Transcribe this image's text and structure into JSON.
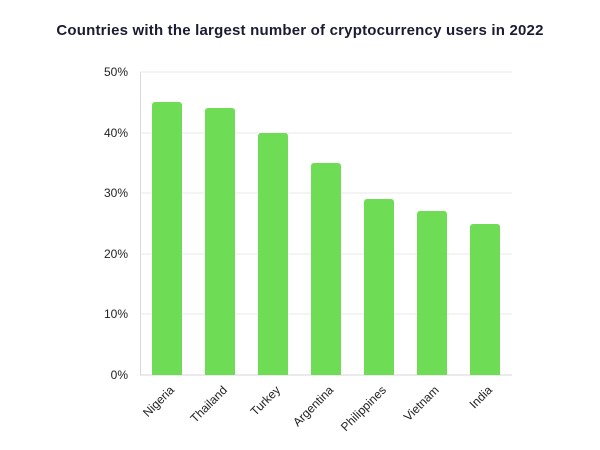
{
  "chart_data": {
    "type": "bar",
    "title": "Countries with the largest number of cryptocurrency users in 2022",
    "categories": [
      "Nigeria",
      "Thailand",
      "Turkey",
      "Argentina",
      "Philippines",
      "Vietnam",
      "India"
    ],
    "values": [
      45,
      44,
      40,
      35,
      29,
      27,
      25
    ],
    "xlabel": "",
    "ylabel": "",
    "ylim": [
      0,
      50
    ],
    "yticks": [
      0,
      10,
      20,
      30,
      40,
      50
    ],
    "ytick_suffix": "%",
    "bar_color": "#6edc55",
    "grid": true,
    "legend": false
  }
}
